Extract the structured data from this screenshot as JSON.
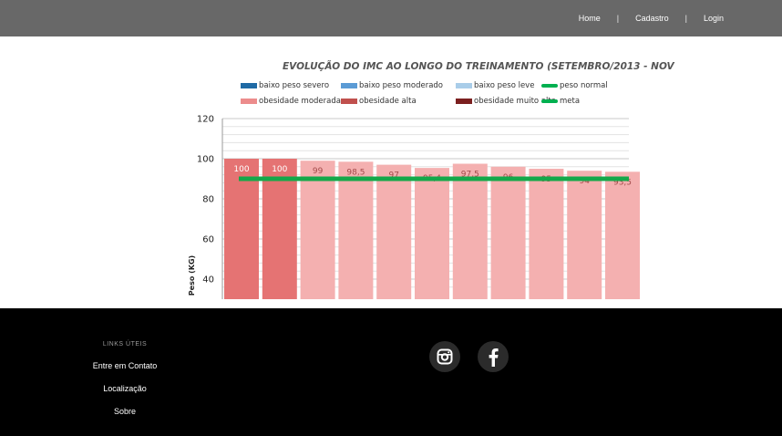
{
  "nav": {
    "home": "Home",
    "cadastro": "Cadastro",
    "login": "Login"
  },
  "chart_data": {
    "type": "bar",
    "title": "EVOLUÇÃO DO IMC AO LONGO DO TREINAMENTO (SETEMBRO/2013 - NOV",
    "ylabel": "Peso (KG)",
    "xlabel": "",
    "ylim": [
      30,
      120
    ],
    "yticks": [
      "40",
      "60",
      "80",
      "100",
      "120"
    ],
    "legend": [
      {
        "label": "baixo peso severo",
        "color": "#1f6aa5",
        "kind": "box"
      },
      {
        "label": "baixo peso moderado",
        "color": "#5b9bd5",
        "kind": "box"
      },
      {
        "label": "baixo peso leve",
        "color": "#a9cde9",
        "kind": "box"
      },
      {
        "label": "peso normal",
        "color": "#00b050",
        "kind": "line"
      },
      {
        "label": "obesidade moderada",
        "color": "#ec8c8c",
        "kind": "box"
      },
      {
        "label": "obesidade alta",
        "color": "#c0504d",
        "kind": "box"
      },
      {
        "label": "obesidade muito alta",
        "color": "#7b1f1f",
        "kind": "box"
      },
      {
        "label": "meta",
        "color": "#00b050",
        "kind": "line"
      }
    ],
    "values": [
      100,
      100,
      99,
      98.5,
      97,
      95.4,
      97.5,
      96,
      95,
      94,
      93.5
    ],
    "labels": [
      "100",
      "100",
      "99",
      "98,5",
      "97",
      "95,4",
      "97,5",
      "96",
      "95",
      "94",
      "93,5"
    ],
    "bar_colors": [
      "#e57373",
      "#e57373",
      "#f4b0b0",
      "#f4b0b0",
      "#f4b0b0",
      "#f4b0b0",
      "#f4b0b0",
      "#f4b0b0",
      "#f4b0b0",
      "#f4b0b0",
      "#f4b0b0"
    ],
    "meta": 90,
    "meta_color": "#14a84a",
    "grid": true
  },
  "footer": {
    "links_title": "LINKS ÚTEIS",
    "links": [
      "Entre em Contato",
      "Localização",
      "Sobre"
    ]
  }
}
